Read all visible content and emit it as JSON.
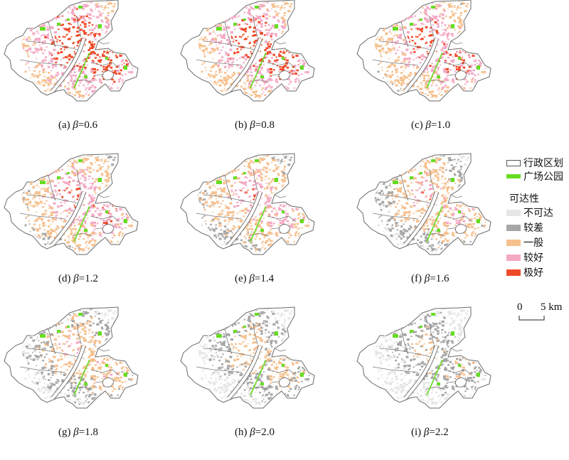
{
  "panels": [
    {
      "id": "a",
      "label_prefix": "(a) ",
      "beta_symbol": "β",
      "label_value": "=0.6",
      "beta": 0.6
    },
    {
      "id": "b",
      "label_prefix": "(b) ",
      "beta_symbol": "β",
      "label_value": "=0.8",
      "beta": 0.8
    },
    {
      "id": "c",
      "label_prefix": "(c) ",
      "beta_symbol": "β",
      "label_value": "=1.0",
      "beta": 1.0
    },
    {
      "id": "d",
      "label_prefix": "(d) ",
      "beta_symbol": "β",
      "label_value": "=1.2",
      "beta": 1.2
    },
    {
      "id": "e",
      "label_prefix": "(e) ",
      "beta_symbol": "β",
      "label_value": "=1.4",
      "beta": 1.4
    },
    {
      "id": "f",
      "label_prefix": "(f) ",
      "beta_symbol": "β",
      "label_value": "=1.6",
      "beta": 1.6
    },
    {
      "id": "g",
      "label_prefix": "(g) ",
      "beta_symbol": "β",
      "label_value": "=1.8",
      "beta": 1.8
    },
    {
      "id": "h",
      "label_prefix": "(h) ",
      "beta_symbol": "β",
      "label_value": "=2.0",
      "beta": 2.0
    },
    {
      "id": "i",
      "label_prefix": "(i) ",
      "beta_symbol": "β",
      "label_value": "=2.2",
      "beta": 2.2
    }
  ],
  "legend": {
    "boundary_label": "行政区划",
    "park_label": "广场公园",
    "accessibility_title": "可达性",
    "classes": [
      {
        "label": "不可达",
        "color": "#e6e6e6"
      },
      {
        "label": "较差",
        "color": "#a6a6a6"
      },
      {
        "label": "一般",
        "color": "#f6c08e"
      },
      {
        "label": "较好",
        "color": "#f4a9c4"
      },
      {
        "label": "极好",
        "color": "#ee4a28"
      }
    ],
    "boundary_color": "#ffffff",
    "park_color": "#66dd22"
  },
  "scale": {
    "zero": "0",
    "end": "5 km"
  }
}
